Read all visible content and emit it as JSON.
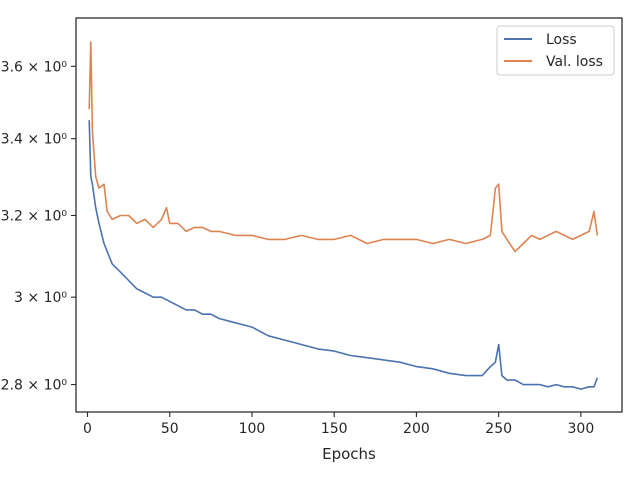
{
  "chart_data": {
    "type": "line",
    "title": "",
    "xlabel": "Epochs",
    "ylabel": "",
    "xlim": [
      -7,
      325
    ],
    "ylim": [
      2.74,
      3.74
    ],
    "yscale": "log",
    "grid": false,
    "legend_position": "top-right",
    "x_ticks": [
      0,
      50,
      100,
      150,
      200,
      250,
      300
    ],
    "x_tick_labels": [
      "0",
      "50",
      "100",
      "150",
      "200",
      "250",
      "300"
    ],
    "y_ticks": [
      2.8,
      3.0,
      3.2,
      3.4,
      3.6
    ],
    "y_tick_labels": [
      "2.8 × 10⁰",
      "3 × 10⁰",
      "3.2 × 10⁰",
      "3.4 × 10⁰",
      "3.6 × 10⁰"
    ],
    "series": [
      {
        "name": "Loss",
        "color": "#4c72b0",
        "x": [
          1,
          2,
          3,
          5,
          7,
          10,
          15,
          20,
          25,
          30,
          35,
          40,
          45,
          50,
          55,
          60,
          65,
          70,
          75,
          80,
          90,
          100,
          110,
          120,
          130,
          140,
          150,
          160,
          170,
          180,
          190,
          200,
          210,
          220,
          230,
          240,
          245,
          248,
          250,
          252,
          255,
          260,
          265,
          270,
          275,
          280,
          285,
          290,
          295,
          300,
          305,
          308,
          310
        ],
        "y": [
          3.45,
          3.3,
          3.28,
          3.22,
          3.18,
          3.13,
          3.08,
          3.06,
          3.04,
          3.02,
          3.01,
          3.0,
          3.0,
          2.99,
          2.98,
          2.97,
          2.97,
          2.96,
          2.96,
          2.95,
          2.94,
          2.93,
          2.91,
          2.9,
          2.89,
          2.88,
          2.875,
          2.865,
          2.86,
          2.855,
          2.85,
          2.84,
          2.835,
          2.825,
          2.82,
          2.82,
          2.84,
          2.85,
          2.89,
          2.82,
          2.81,
          2.81,
          2.8,
          2.8,
          2.8,
          2.795,
          2.8,
          2.795,
          2.795,
          2.79,
          2.795,
          2.795,
          2.815
        ]
      },
      {
        "name": "Val. loss",
        "color": "#dd8452",
        "x": [
          1,
          2,
          3,
          5,
          7,
          10,
          12,
          15,
          20,
          25,
          30,
          35,
          40,
          45,
          48,
          50,
          55,
          60,
          65,
          70,
          75,
          80,
          90,
          100,
          110,
          120,
          130,
          140,
          150,
          160,
          170,
          180,
          190,
          200,
          210,
          220,
          230,
          240,
          245,
          248,
          250,
          252,
          255,
          260,
          265,
          270,
          275,
          280,
          285,
          290,
          295,
          300,
          305,
          308,
          310
        ],
        "y": [
          3.48,
          3.67,
          3.42,
          3.3,
          3.27,
          3.28,
          3.21,
          3.19,
          3.2,
          3.2,
          3.18,
          3.19,
          3.17,
          3.19,
          3.22,
          3.18,
          3.18,
          3.16,
          3.17,
          3.17,
          3.16,
          3.16,
          3.15,
          3.15,
          3.14,
          3.14,
          3.15,
          3.14,
          3.14,
          3.15,
          3.13,
          3.14,
          3.14,
          3.14,
          3.13,
          3.14,
          3.13,
          3.14,
          3.15,
          3.27,
          3.28,
          3.16,
          3.14,
          3.11,
          3.13,
          3.15,
          3.14,
          3.15,
          3.16,
          3.15,
          3.14,
          3.15,
          3.16,
          3.21,
          3.15
        ]
      }
    ]
  }
}
